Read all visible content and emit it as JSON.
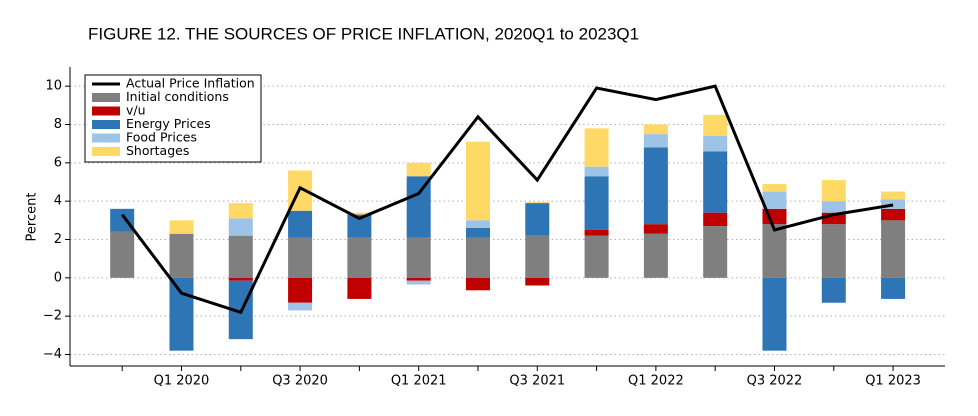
{
  "chart_data": {
    "type": "bar",
    "stacked": true,
    "title": "FIGURE 12.  THE SOURCES OF PRICE INFLATION, 2020Q1 to 2023Q1",
    "y_label": "Percent",
    "categories": [
      null,
      "Q1 2020",
      null,
      "Q3 2020",
      null,
      "Q1 2021",
      null,
      "Q3 2021",
      null,
      "Q1 2022",
      null,
      "Q3 2022",
      null,
      "Q1 2023"
    ],
    "series": [
      {
        "name": "Actual Price Inflation",
        "type": "line",
        "color": "#000000",
        "values": [
          3.3,
          -0.8,
          -1.8,
          4.7,
          3.1,
          4.4,
          8.4,
          5.1,
          9.9,
          9.3,
          10.0,
          2.5,
          3.3,
          3.8
        ]
      },
      {
        "name": "Initial conditions",
        "color": "#7f7f7f",
        "values": [
          2.4,
          2.3,
          2.2,
          2.1,
          2.1,
          2.1,
          2.1,
          2.2,
          2.2,
          2.3,
          2.7,
          2.8,
          2.8,
          3.0
        ]
      },
      {
        "name": "v/u",
        "color": "#c00000",
        "values": [
          0,
          0,
          -0.15,
          -1.3,
          -1.1,
          -0.15,
          -0.65,
          -0.4,
          0.3,
          0.5,
          0.7,
          0.8,
          0.6,
          0.6
        ]
      },
      {
        "name": "Energy Prices",
        "color": "#2e75b6",
        "values": [
          1.2,
          -3.8,
          -3.05,
          1.4,
          1.2,
          3.2,
          0.5,
          1.7,
          2.8,
          4.0,
          3.2,
          -3.8,
          -1.3,
          -1.1
        ]
      },
      {
        "name": "Food Prices",
        "color": "#9dc3e6",
        "values": [
          0,
          0,
          0.9,
          -0.4,
          0,
          -0.2,
          0.4,
          0,
          0.5,
          0.7,
          0.8,
          0.9,
          0.6,
          0.5
        ]
      },
      {
        "name": "Shortages",
        "color": "#ffd966",
        "values": [
          0,
          0.7,
          0.8,
          2.1,
          0.1,
          0.7,
          4.1,
          0.05,
          2.0,
          0.5,
          1.1,
          0.4,
          1.1,
          0.4
        ]
      }
    ],
    "ylim": [
      -4.6,
      11
    ],
    "yticks": [
      {
        "value": -4,
        "label": "−4"
      },
      {
        "value": -2,
        "label": "−2"
      },
      0,
      2,
      4,
      6,
      8,
      10
    ],
    "grid": true,
    "legend": "upper left"
  }
}
